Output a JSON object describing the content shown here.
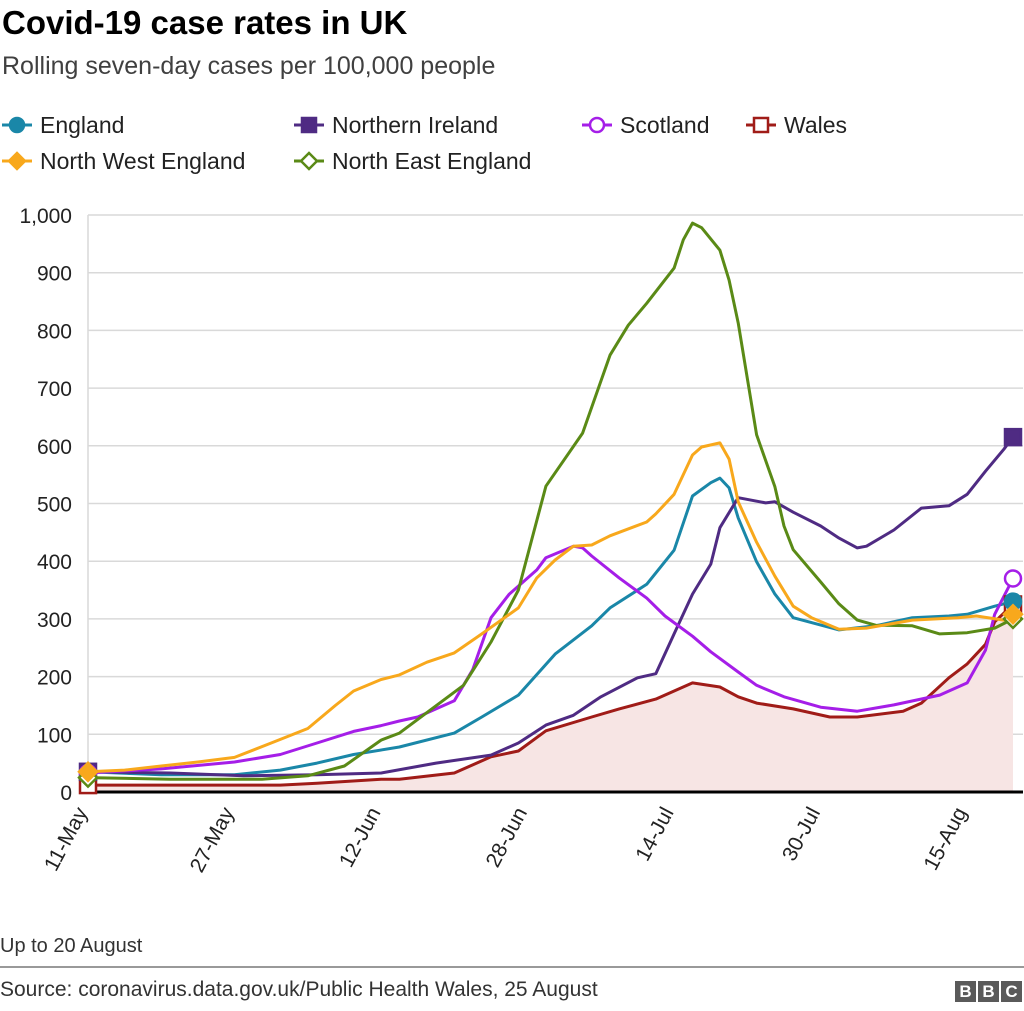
{
  "header": {
    "title": "Covid-19 case rates in UK",
    "subtitle": "Rolling seven-day cases per 100,000 people"
  },
  "footer": {
    "note": "Up to 20 August",
    "source": "Source: coronavirus.data.gov.uk/Public Health Wales, 25 August",
    "logo": "BBC"
  },
  "chart_data": {
    "type": "line",
    "title": "Covid-19 case rates in UK",
    "subtitle": "Rolling seven-day cases per 100,000 people",
    "xlabel": "",
    "ylabel": "",
    "ylim": [
      0,
      1000
    ],
    "xlim": [
      "11-May",
      "20-Aug"
    ],
    "y_ticks": [
      "0",
      "100",
      "200",
      "300",
      "400",
      "500",
      "600",
      "700",
      "800",
      "900",
      "1,000"
    ],
    "y_tick_values": [
      0,
      100,
      200,
      300,
      400,
      500,
      600,
      700,
      800,
      900,
      1000
    ],
    "x_ticks": [
      "11-May",
      "27-May",
      "12-Jun",
      "28-Jun",
      "14-Jul",
      "30-Jul",
      "15-Aug"
    ],
    "grid": "horizontal",
    "legend_position": "top",
    "series": [
      {
        "name": "England",
        "color": "#1a87a8",
        "marker": "circle-filled",
        "points": [
          [
            "11-May",
            35
          ],
          [
            "19-May",
            30
          ],
          [
            "27-May",
            30
          ],
          [
            "1-Jun",
            38
          ],
          [
            "5-Jun",
            50
          ],
          [
            "9-Jun",
            65
          ],
          [
            "14-Jun",
            78
          ],
          [
            "20-Jun",
            102
          ],
          [
            "23-Jun",
            130
          ],
          [
            "27-Jun",
            168
          ],
          [
            "1-Jul",
            239
          ],
          [
            "5-Jul",
            288
          ],
          [
            "7-Jul",
            319
          ],
          [
            "11-Jul",
            360
          ],
          [
            "14-Jul",
            419
          ],
          [
            "16-Jul",
            513
          ],
          [
            "18-Jul",
            536
          ],
          [
            "19-Jul",
            544
          ],
          [
            "20-Jul",
            527
          ],
          [
            "21-Jul",
            475
          ],
          [
            "23-Jul",
            399
          ],
          [
            "25-Jul",
            343
          ],
          [
            "27-Jul",
            302
          ],
          [
            "1-Aug",
            281
          ],
          [
            "5-Aug",
            288
          ],
          [
            "9-Aug",
            302
          ],
          [
            "13-Aug",
            305
          ],
          [
            "15-Aug",
            308
          ],
          [
            "18-Aug",
            322
          ],
          [
            "20-Aug",
            330
          ]
        ]
      },
      {
        "name": "Northern Ireland",
        "color": "#4f2b83",
        "marker": "square-filled",
        "points": [
          [
            "11-May",
            35
          ],
          [
            "20-May",
            33
          ],
          [
            "28-May",
            28
          ],
          [
            "5-Jun",
            30
          ],
          [
            "12-Jun",
            33
          ],
          [
            "18-Jun",
            50
          ],
          [
            "24-Jun",
            64
          ],
          [
            "27-Jun",
            85
          ],
          [
            "30-Jun",
            116
          ],
          [
            "3-Jul",
            133
          ],
          [
            "6-Jul",
            165
          ],
          [
            "10-Jul",
            198
          ],
          [
            "12-Jul",
            205
          ],
          [
            "14-Jul",
            274
          ],
          [
            "16-Jul",
            343
          ],
          [
            "18-Jul",
            395
          ],
          [
            "19-Jul",
            458
          ],
          [
            "21-Jul",
            510
          ],
          [
            "24-Jul",
            501
          ],
          [
            "25-Jul",
            503
          ],
          [
            "27-Jul",
            485
          ],
          [
            "30-Jul",
            461
          ],
          [
            "1-Aug",
            440
          ],
          [
            "3-Aug",
            423
          ],
          [
            "4-Aug",
            426
          ],
          [
            "7-Aug",
            454
          ],
          [
            "10-Aug",
            492
          ],
          [
            "13-Aug",
            496
          ],
          [
            "15-Aug",
            516
          ],
          [
            "17-Aug",
            556
          ],
          [
            "19-Aug",
            594
          ],
          [
            "20-Aug",
            615
          ]
        ]
      },
      {
        "name": "Scotland",
        "color": "#a51ee8",
        "marker": "circle-open",
        "points": [
          [
            "11-May",
            33
          ],
          [
            "19-May",
            40
          ],
          [
            "27-May",
            52
          ],
          [
            "1-Jun",
            65
          ],
          [
            "5-Jun",
            85
          ],
          [
            "9-Jun",
            105
          ],
          [
            "12-Jun",
            115
          ],
          [
            "14-Jun",
            123
          ],
          [
            "16-Jun",
            130
          ],
          [
            "18-Jun",
            144
          ],
          [
            "20-Jun",
            158
          ],
          [
            "22-Jun",
            212
          ],
          [
            "24-Jun",
            302
          ],
          [
            "26-Jun",
            343
          ],
          [
            "29-Jun",
            385
          ],
          [
            "30-Jun",
            406
          ],
          [
            "3-Jul",
            426
          ],
          [
            "4-Jul",
            423
          ],
          [
            "5-Jul",
            409
          ],
          [
            "8-Jul",
            371
          ],
          [
            "11-Jul",
            336
          ],
          [
            "13-Jul",
            305
          ],
          [
            "16-Jul",
            270
          ],
          [
            "18-Jul",
            243
          ],
          [
            "21-Jul",
            208
          ],
          [
            "23-Jul",
            185
          ],
          [
            "26-Jul",
            165
          ],
          [
            "30-Jul",
            147
          ],
          [
            "3-Aug",
            140
          ],
          [
            "7-Aug",
            151
          ],
          [
            "12-Aug",
            168
          ],
          [
            "15-Aug",
            189
          ],
          [
            "17-Aug",
            246
          ],
          [
            "18-Aug",
            308
          ],
          [
            "20-Aug",
            370
          ]
        ]
      },
      {
        "name": "Wales",
        "color": "#a01c18",
        "marker": "square-open",
        "area_fill": "#f7e5e4",
        "points": [
          [
            "11-May",
            12
          ],
          [
            "1-Jun",
            12
          ],
          [
            "5-Jun",
            15
          ],
          [
            "12-Jun",
            22
          ],
          [
            "14-Jun",
            22
          ],
          [
            "20-Jun",
            33
          ],
          [
            "24-Jun",
            61
          ],
          [
            "27-Jun",
            71
          ],
          [
            "30-Jun",
            106
          ],
          [
            "5-Jul",
            130
          ],
          [
            "8-Jul",
            144
          ],
          [
            "12-Jul",
            161
          ],
          [
            "16-Jul",
            189
          ],
          [
            "19-Jul",
            182
          ],
          [
            "21-Jul",
            165
          ],
          [
            "23-Jul",
            154
          ],
          [
            "27-Jul",
            144
          ],
          [
            "31-Jul",
            130
          ],
          [
            "3-Aug",
            130
          ],
          [
            "8-Aug",
            140
          ],
          [
            "10-Aug",
            154
          ],
          [
            "13-Aug",
            198
          ],
          [
            "15-Aug",
            222
          ],
          [
            "17-Aug",
            256
          ],
          [
            "18-Aug",
            295
          ],
          [
            "20-Aug",
            325
          ]
        ]
      },
      {
        "name": "North West England",
        "color": "#f8a81c",
        "marker": "diamond-filled",
        "points": [
          [
            "11-May",
            35
          ],
          [
            "15-May",
            38
          ],
          [
            "19-May",
            45
          ],
          [
            "23-May",
            52
          ],
          [
            "27-May",
            60
          ],
          [
            "31-May",
            85
          ],
          [
            "4-Jun",
            110
          ],
          [
            "7-Jun",
            150
          ],
          [
            "9-Jun",
            175
          ],
          [
            "12-Jun",
            195
          ],
          [
            "14-Jun",
            203
          ],
          [
            "17-Jun",
            225
          ],
          [
            "20-Jun",
            241
          ],
          [
            "23-Jun",
            274
          ],
          [
            "27-Jun",
            319
          ],
          [
            "29-Jun",
            371
          ],
          [
            "1-Jul",
            402
          ],
          [
            "3-Jul",
            426
          ],
          [
            "5-Jul",
            428
          ],
          [
            "7-Jul",
            444
          ],
          [
            "11-Jul",
            468
          ],
          [
            "12-Jul",
            482
          ],
          [
            "14-Jul",
            516
          ],
          [
            "16-Jul",
            584
          ],
          [
            "17-Jul",
            598
          ],
          [
            "19-Jul",
            605
          ],
          [
            "20-Jul",
            577
          ],
          [
            "21-Jul",
            503
          ],
          [
            "23-Jul",
            433
          ],
          [
            "25-Jul",
            374
          ],
          [
            "27-Jul",
            322
          ],
          [
            "29-Jul",
            302
          ],
          [
            "1-Aug",
            282
          ],
          [
            "4-Aug",
            284
          ],
          [
            "9-Aug",
            298
          ],
          [
            "14-Aug",
            302
          ],
          [
            "16-Aug",
            305
          ],
          [
            "19-Aug",
            298
          ],
          [
            "20-Aug",
            308
          ]
        ]
      },
      {
        "name": "North East England",
        "color": "#5a8a16",
        "marker": "diamond-open",
        "points": [
          [
            "11-May",
            25
          ],
          [
            "20-May",
            22
          ],
          [
            "30-May",
            22
          ],
          [
            "4-Jun",
            28
          ],
          [
            "8-Jun",
            45
          ],
          [
            "12-Jun",
            90
          ],
          [
            "14-Jun",
            102
          ],
          [
            "21-Jun",
            185
          ],
          [
            "24-Jun",
            260
          ],
          [
            "27-Jun",
            350
          ],
          [
            "30-Jun",
            530
          ],
          [
            "4-Jul",
            622
          ],
          [
            "7-Jul",
            757
          ],
          [
            "9-Jul",
            809
          ],
          [
            "11-Jul",
            847
          ],
          [
            "14-Jul",
            908
          ],
          [
            "15-Jul",
            957
          ],
          [
            "16-Jul",
            986
          ],
          [
            "17-Jul",
            978
          ],
          [
            "19-Jul",
            939
          ],
          [
            "20-Jul",
            887
          ],
          [
            "21-Jul",
            813
          ],
          [
            "23-Jul",
            619
          ],
          [
            "25-Jul",
            529
          ],
          [
            "26-Jul",
            461
          ],
          [
            "27-Jul",
            420
          ],
          [
            "30-Jul",
            364
          ],
          [
            "1-Aug",
            326
          ],
          [
            "3-Aug",
            298
          ],
          [
            "5-Aug",
            289
          ],
          [
            "9-Aug",
            288
          ],
          [
            "12-Aug",
            274
          ],
          [
            "15-Aug",
            276
          ],
          [
            "18-Aug",
            284
          ],
          [
            "20-Aug",
            300
          ]
        ]
      }
    ]
  }
}
